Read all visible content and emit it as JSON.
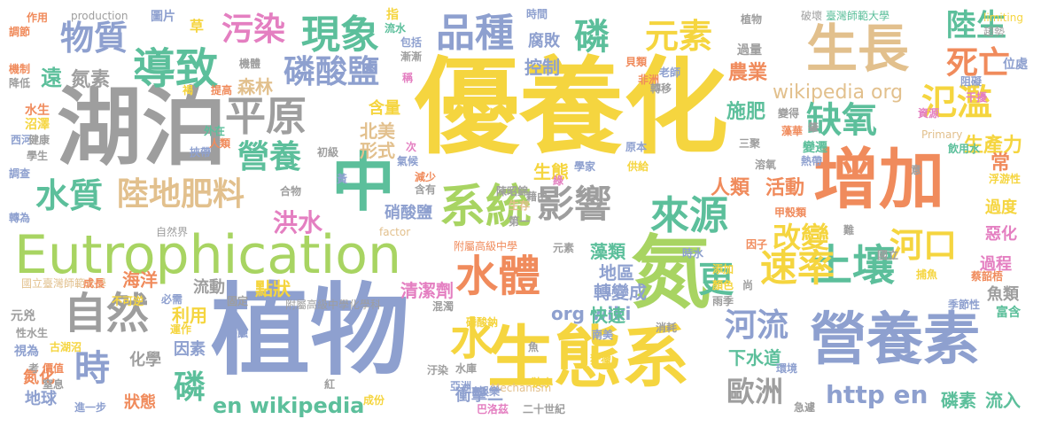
{
  "words": [
    {
      "text": "優養化",
      "color": "#f5d53f"
    },
    {
      "text": "植物",
      "color": "#8ea0cf"
    },
    {
      "text": "湖泊",
      "color": "#9e9e9e"
    },
    {
      "text": "增加",
      "color": "#f08b5c"
    },
    {
      "text": "Eutrophication",
      "color": "#a8d462"
    },
    {
      "text": "生態系",
      "color": "#f5d53f"
    },
    {
      "text": "營養素",
      "color": "#8ea0cf"
    },
    {
      "text": "生長",
      "color": "#e2c08d"
    },
    {
      "text": "氮",
      "color": "#a8d462"
    },
    {
      "text": "中",
      "color": "#5cbf9b"
    },
    {
      "text": "系統",
      "color": "#a8d462"
    },
    {
      "text": "自然",
      "color": "#9e9e9e"
    },
    {
      "text": "導致",
      "color": "#5cbf9b"
    },
    {
      "text": "現象",
      "color": "#5cbf9b"
    },
    {
      "text": "品種",
      "color": "#8ea0cf"
    },
    {
      "text": "水體",
      "color": "#f08b5c"
    },
    {
      "text": "土壤",
      "color": "#5cbf9b"
    },
    {
      "text": "平原",
      "color": "#9e9e9e"
    },
    {
      "text": "來源",
      "color": "#5cbf9b"
    },
    {
      "text": "影響",
      "color": "#9e9e9e"
    },
    {
      "text": "磷酸鹽",
      "color": "#8ea0cf"
    },
    {
      "text": "元素",
      "color": "#f5d53f"
    },
    {
      "text": "物質",
      "color": "#8ea0cf"
    },
    {
      "text": "污染",
      "color": "#e47fc1"
    },
    {
      "text": "死亡",
      "color": "#f08b5c"
    },
    {
      "text": "陸生",
      "color": "#5cbf9b"
    },
    {
      "text": "氾濫",
      "color": "#f5d53f"
    },
    {
      "text": "缺氧",
      "color": "#5cbf9b"
    },
    {
      "text": "營養",
      "color": "#5cbf9b"
    },
    {
      "text": "陸地肥料",
      "color": "#e2c08d"
    },
    {
      "text": "水質",
      "color": "#5cbf9b"
    },
    {
      "text": "速率",
      "color": "#f5d53f"
    },
    {
      "text": "河口",
      "color": "#f5d53f"
    },
    {
      "text": "河流",
      "color": "#8ea0cf"
    },
    {
      "text": "歐洲",
      "color": "#9e9e9e"
    },
    {
      "text": "磷",
      "color": "#5cbf9b"
    },
    {
      "text": "時",
      "color": "#8ea0cf"
    },
    {
      "text": "磷",
      "color": "#5cbf9b"
    },
    {
      "text": "水",
      "color": "#f5d53f"
    },
    {
      "text": "更",
      "color": "#5cbf9b"
    },
    {
      "text": "改變",
      "color": "#f5d53f"
    },
    {
      "text": "洪水",
      "color": "#e47fc1"
    },
    {
      "text": "http en",
      "color": "#8ea0cf"
    },
    {
      "text": "en wikipedia",
      "color": "#5cbf9b"
    },
    {
      "text": "wikipedia org",
      "color": "#e2c08d"
    },
    {
      "text": "org wiki",
      "color": "#8ea0cf"
    },
    {
      "text": "人類",
      "color": "#f08b5c"
    },
    {
      "text": "活動",
      "color": "#f08b5c"
    },
    {
      "text": "農業",
      "color": "#f08b5c"
    },
    {
      "text": "施肥",
      "color": "#5cbf9b"
    },
    {
      "text": "生態",
      "color": "#f5d53f"
    },
    {
      "text": "生產力",
      "color": "#f5d53f"
    },
    {
      "text": "海洋",
      "color": "#f08b5c"
    },
    {
      "text": "遠",
      "color": "#5cbf9b"
    },
    {
      "text": "氮素",
      "color": "#9e9e9e"
    },
    {
      "text": "北美",
      "color": "#e2c08d"
    },
    {
      "text": "形式",
      "color": "#e2c08d"
    },
    {
      "text": "含量",
      "color": "#f5d53f"
    },
    {
      "text": "控制",
      "color": "#8ea0cf"
    },
    {
      "text": "腐敗",
      "color": "#8ea0cf"
    },
    {
      "text": "森林",
      "color": "#e2c08d"
    },
    {
      "text": "硝酸鹽",
      "color": "#8ea0cf"
    },
    {
      "text": "清潔劑",
      "color": "#e47fc1"
    },
    {
      "text": "轉變成",
      "color": "#8ea0cf"
    },
    {
      "text": "地區",
      "color": "#8ea0cf"
    },
    {
      "text": "藻類",
      "color": "#5cbf9b"
    },
    {
      "text": "點狀",
      "color": "#f5d53f"
    },
    {
      "text": "流動",
      "color": "#9e9e9e"
    },
    {
      "text": "利用",
      "color": "#f5d53f"
    },
    {
      "text": "因素",
      "color": "#8ea0cf"
    },
    {
      "text": "化學",
      "color": "#9e9e9e"
    },
    {
      "text": "快速",
      "color": "#5cbf9b"
    },
    {
      "text": "下水道",
      "color": "#5cbf9b"
    },
    {
      "text": "磷素",
      "color": "#5cbf9b"
    },
    {
      "text": "流入",
      "color": "#5cbf9b"
    },
    {
      "text": "過程",
      "color": "#e47fc1"
    },
    {
      "text": "惡化",
      "color": "#e47fc1"
    },
    {
      "text": "過度",
      "color": "#f5d53f"
    },
    {
      "text": "魚類",
      "color": "#9e9e9e"
    },
    {
      "text": "富含",
      "color": "#5cbf9b"
    },
    {
      "text": "常",
      "color": "#f08b5c"
    },
    {
      "text": "位處",
      "color": "#8ea0cf"
    },
    {
      "text": "狀態",
      "color": "#f08b5c"
    },
    {
      "text": "地球",
      "color": "#8ea0cf"
    },
    {
      "text": "氮化",
      "color": "#f08b5c"
    },
    {
      "text": "進一步",
      "color": "#8ea0cf"
    },
    {
      "text": "衝擊二",
      "color": "#8ea0cf"
    },
    {
      "text": "二十世紀",
      "color": "#9e9e9e"
    },
    {
      "text": "巴洛茲",
      "color": "#e47fc1"
    },
    {
      "text": "國立臺灣師範大學",
      "color": "#e2c08d"
    },
    {
      "text": "附屬高級中學化學科",
      "color": "#9e9e9e"
    },
    {
      "text": "附屬高級中學",
      "color": "#f08b5c"
    },
    {
      "text": "自然界",
      "color": "#9e9e9e"
    },
    {
      "text": "破壞",
      "color": "#9e9e9e"
    },
    {
      "text": "臺灣師範大學",
      "color": "#5cbf9b"
    },
    {
      "text": "limiting",
      "color": "#f5d53f"
    },
    {
      "text": "趨勢",
      "color": "#9e9e9e"
    },
    {
      "text": "Primary",
      "color": "#e2c08d"
    },
    {
      "text": "飲用水",
      "color": "#5cbf9b"
    },
    {
      "text": "浮游性",
      "color": "#f5d53f"
    },
    {
      "text": "Mechanism",
      "color": "#e2c08d"
    },
    {
      "text": "factor",
      "color": "#e2c08d"
    },
    {
      "text": "production",
      "color": "#9e9e9e"
    },
    {
      "text": "作用",
      "color": "#f08b5c"
    },
    {
      "text": "調節",
      "color": "#f08b5c"
    },
    {
      "text": "機制",
      "color": "#f08b5c"
    },
    {
      "text": "降低",
      "color": "#9e9e9e"
    },
    {
      "text": "水生",
      "color": "#f08b5c"
    },
    {
      "text": "沼澤",
      "color": "#f5d53f"
    },
    {
      "text": "西河",
      "color": "#8ea0cf"
    },
    {
      "text": "健康",
      "color": "#9e9e9e"
    },
    {
      "text": "學生",
      "color": "#9e9e9e"
    },
    {
      "text": "調查",
      "color": "#8ea0cf"
    },
    {
      "text": "轉為",
      "color": "#8ea0cf"
    },
    {
      "text": "不可逆",
      "color": "#f5d53f"
    },
    {
      "text": "元兇",
      "color": "#9e9e9e"
    },
    {
      "text": "性水生",
      "color": "#9e9e9e"
    },
    {
      "text": "視為",
      "color": "#8ea0cf"
    },
    {
      "text": "價值",
      "color": "#f08b5c"
    },
    {
      "text": "窒息",
      "color": "#9e9e9e"
    },
    {
      "text": "古湖沼",
      "color": "#f5d53f"
    },
    {
      "text": "圖片",
      "color": "#8ea0cf"
    },
    {
      "text": "草",
      "color": "#f5d53f"
    },
    {
      "text": "指",
      "color": "#f5d53f"
    },
    {
      "text": "時間",
      "color": "#8ea0cf"
    },
    {
      "text": "包括",
      "color": "#8ea0cf"
    },
    {
      "text": "漸漸",
      "color": "#9e9e9e"
    },
    {
      "text": "流水",
      "color": "#5cbf9b"
    },
    {
      "text": "過量",
      "color": "#9e9e9e"
    },
    {
      "text": "貝類",
      "color": "#f08b5c"
    },
    {
      "text": "老師",
      "color": "#8ea0cf"
    },
    {
      "text": "非洲",
      "color": "#f08b5c"
    },
    {
      "text": "轉移",
      "color": "#9e9e9e"
    },
    {
      "text": "阻礙",
      "color": "#8ea0cf"
    },
    {
      "text": "干擾",
      "color": "#e47fc1"
    },
    {
      "text": "資源",
      "color": "#e47fc1"
    },
    {
      "text": "變得",
      "color": "#9e9e9e"
    },
    {
      "text": "藻華",
      "color": "#f08b5c"
    },
    {
      "text": "變遷",
      "color": "#5cbf9b"
    },
    {
      "text": "熱帶",
      "color": "#8ea0cf"
    },
    {
      "text": "溶氧",
      "color": "#9e9e9e"
    },
    {
      "text": "甲殼類",
      "color": "#f08b5c"
    },
    {
      "text": "因子",
      "color": "#f08b5c"
    },
    {
      "text": "捕魚",
      "color": "#f5d53f"
    },
    {
      "text": "蔡韶梧",
      "color": "#f08b5c"
    },
    {
      "text": "季節性",
      "color": "#8ea0cf"
    },
    {
      "text": "國立",
      "color": "#9e9e9e"
    },
    {
      "text": "急遽",
      "color": "#9e9e9e"
    },
    {
      "text": "雨季",
      "color": "#9e9e9e"
    },
    {
      "text": "顏色",
      "color": "#f5d53f"
    },
    {
      "text": "添加",
      "color": "#f5d53f"
    },
    {
      "text": "尚",
      "color": "#9e9e9e"
    },
    {
      "text": "環境",
      "color": "#8ea0cf"
    },
    {
      "text": "成份",
      "color": "#f5d53f"
    },
    {
      "text": "亞洲",
      "color": "#8ea0cf"
    },
    {
      "text": "娛樂",
      "color": "#8ea0cf"
    },
    {
      "text": "狹小",
      "color": "#f5d53f"
    },
    {
      "text": "藉由",
      "color": "#9e9e9e"
    },
    {
      "text": "陳昭錦",
      "color": "#9e9e9e"
    },
    {
      "text": "元素",
      "color": "#9e9e9e"
    },
    {
      "text": "減少",
      "color": "#f08b5c"
    },
    {
      "text": "含有",
      "color": "#9e9e9e"
    },
    {
      "text": "混濁",
      "color": "#9e9e9e"
    },
    {
      "text": "磷酸鈉",
      "color": "#f5d53f"
    },
    {
      "text": "南美",
      "color": "#8ea0cf"
    },
    {
      "text": "消耗",
      "color": "#9e9e9e"
    },
    {
      "text": "狩獵",
      "color": "#f5d53f"
    },
    {
      "text": "水庫",
      "color": "#9e9e9e"
    },
    {
      "text": "紅",
      "color": "#9e9e9e"
    },
    {
      "text": "汙染",
      "color": "#9e9e9e"
    },
    {
      "text": "侵蝕",
      "color": "#8ea0cf"
    },
    {
      "text": "必需",
      "color": "#8ea0cf"
    },
    {
      "text": "成長",
      "color": "#f08b5c"
    },
    {
      "text": "運作",
      "color": "#f5d53f"
    },
    {
      "text": "考",
      "color": "#9e9e9e"
    },
    {
      "text": "外在",
      "color": "#5cbf9b"
    },
    {
      "text": "人類",
      "color": "#f08b5c"
    },
    {
      "text": "挾帶",
      "color": "#8ea0cf"
    },
    {
      "text": "初級",
      "color": "#9e9e9e"
    },
    {
      "text": "次",
      "color": "#e47fc1"
    },
    {
      "text": "氣候",
      "color": "#8ea0cf"
    },
    {
      "text": "合物",
      "color": "#9e9e9e"
    },
    {
      "text": "黃",
      "color": "#8ea0cf"
    },
    {
      "text": "學家",
      "color": "#8ea0cf"
    },
    {
      "text": "生存",
      "color": "#e2c08d"
    },
    {
      "text": "第一",
      "color": "#9e9e9e"
    },
    {
      "text": "綠",
      "color": "#e47fc1"
    },
    {
      "text": "供給",
      "color": "#f5d53f"
    },
    {
      "text": "原本",
      "color": "#8ea0cf"
    },
    {
      "text": "三聚",
      "color": "#9e9e9e"
    },
    {
      "text": "肇",
      "color": "#9e9e9e"
    },
    {
      "text": "植物",
      "color": "#9e9e9e"
    },
    {
      "text": "意",
      "color": "#9e9e9e"
    },
    {
      "text": "稱",
      "color": "#e47fc1"
    },
    {
      "text": "機體",
      "color": "#9e9e9e"
    },
    {
      "text": "提高",
      "color": "#f08b5c"
    },
    {
      "text": "褐",
      "color": "#f5d53f"
    },
    {
      "text": "固定",
      "color": "#9e9e9e"
    },
    {
      "text": "魚",
      "color": "#9e9e9e"
    },
    {
      "text": "時水",
      "color": "#8ea0cf"
    },
    {
      "text": "難",
      "color": "#9e9e9e"
    }
  ]
}
